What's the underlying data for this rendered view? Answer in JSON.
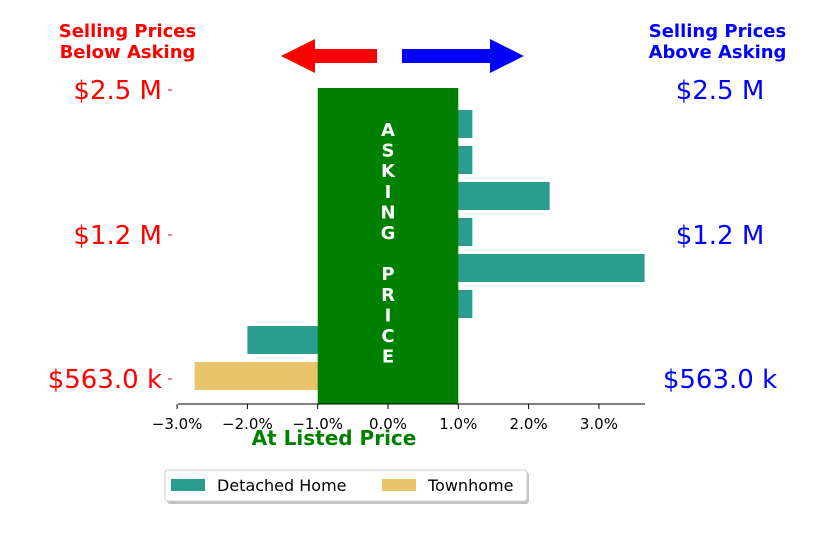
{
  "headers": {
    "left": [
      "Selling Prices",
      "Below Asking"
    ],
    "right": [
      "Selling Prices",
      "Above Asking"
    ]
  },
  "asking_price_label": [
    "A",
    "S",
    "K",
    "I",
    "N",
    "G",
    "",
    "P",
    "R",
    "I",
    "C",
    "E"
  ],
  "xlabel": "At Listed Price",
  "colors": {
    "detached": "#2a9d8f",
    "townhome": "#e9c46a",
    "asking_block": "#008000",
    "below": "#ff0000",
    "above": "#0000ff"
  },
  "chart_data": {
    "type": "bar",
    "orientation": "horizontal",
    "x_tick_labels": [
      "−3.0%",
      "−2.0%",
      "−1.0%",
      "0.0%",
      "1.0%",
      "2.0%",
      "3.0%"
    ],
    "x_ticks": [
      -3,
      -2,
      -1,
      0,
      1,
      2,
      3
    ],
    "xlim": [
      -3.0,
      3.7
    ],
    "asking_band": [
      -1.0,
      1.0
    ],
    "left_price_labels": [
      "$2.5 M",
      "$1.2 M",
      "$563.0 k"
    ],
    "right_price_labels": [
      "$2.5 M",
      "$1.2 M",
      "$563.0 k"
    ],
    "series": [
      {
        "name": "Detached Home",
        "key": "detached",
        "values": [
          1.2,
          1.2,
          2.3,
          1.2,
          3.65,
          1.2,
          -2.0
        ]
      },
      {
        "name": "Townhome",
        "key": "townhome",
        "values": [
          -2.75
        ]
      }
    ],
    "legend": [
      "Detached Home",
      "Townhome"
    ],
    "legend_position": "bottom-center"
  }
}
